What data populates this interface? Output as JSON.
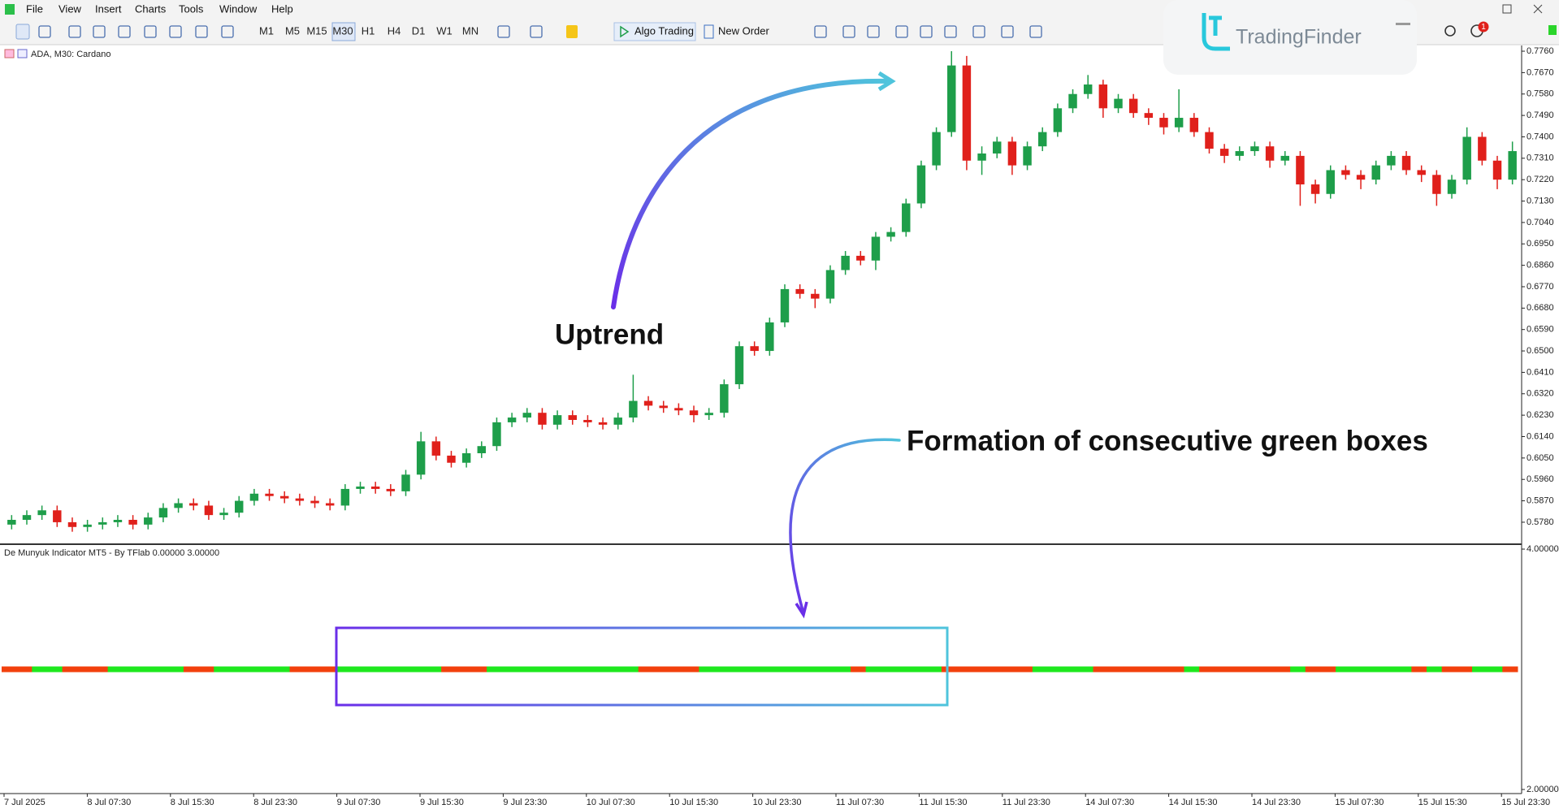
{
  "menu": [
    "File",
    "View",
    "Insert",
    "Charts",
    "Tools",
    "Window",
    "Help"
  ],
  "toolbar": {
    "timeframes": [
      "M1",
      "M5",
      "M15",
      "M30",
      "H1",
      "H4",
      "D1",
      "W1",
      "MN"
    ],
    "active_timeframe": "M30",
    "algo_trading": "Algo Trading",
    "new_order": "New Order"
  },
  "logo": "TradingFinder",
  "notification_count": 1,
  "chart_data": {
    "type": "candlestick",
    "symbol_label": "ADA, M30: Cardano",
    "up_color": "#1e9e4a",
    "down_color": "#e0201b",
    "ylim": [
      0.5691,
      0.7784
    ],
    "yticks": [
      {
        "value": 0.776,
        "label": "0.7760"
      },
      {
        "value": 0.767,
        "label": "0.7670"
      },
      {
        "value": 0.758,
        "label": "0.7580"
      },
      {
        "value": 0.749,
        "label": "0.7490"
      },
      {
        "value": 0.74,
        "label": "0.7400"
      },
      {
        "value": 0.731,
        "label": "0.7310"
      },
      {
        "value": 0.722,
        "label": "0.7220"
      },
      {
        "value": 0.713,
        "label": "0.7130"
      },
      {
        "value": 0.704,
        "label": "0.7040"
      },
      {
        "value": 0.695,
        "label": "0.6950"
      },
      {
        "value": 0.686,
        "label": "0.6860"
      },
      {
        "value": 0.677,
        "label": "0.6770"
      },
      {
        "value": 0.668,
        "label": "0.6680"
      },
      {
        "value": 0.659,
        "label": "0.6590"
      },
      {
        "value": 0.65,
        "label": "0.6500"
      },
      {
        "value": 0.641,
        "label": "0.6410"
      },
      {
        "value": 0.632,
        "label": "0.6320"
      },
      {
        "value": 0.623,
        "label": "0.6230"
      },
      {
        "value": 0.614,
        "label": "0.6140"
      },
      {
        "value": 0.605,
        "label": "0.6050"
      },
      {
        "value": 0.596,
        "label": "0.5960"
      },
      {
        "value": 0.587,
        "label": "0.5870"
      },
      {
        "value": 0.578,
        "label": "0.5780"
      }
    ],
    "x_labels": [
      "7 Jul 2025",
      "8 Jul 07:30",
      "8 Jul 15:30",
      "8 Jul 23:30",
      "9 Jul 07:30",
      "9 Jul 15:30",
      "9 Jul 23:30",
      "10 Jul 07:30",
      "10 Jul 15:30",
      "10 Jul 23:30",
      "11 Jul 07:30",
      "11 Jul 15:30",
      "11 Jul 23:30",
      "14 Jul 07:30",
      "14 Jul 15:30",
      "14 Jul 23:30",
      "15 Jul 07:30",
      "15 Jul 15:30",
      "15 Jul 23:30"
    ],
    "candles": [
      [
        0.577,
        0.581,
        0.575,
        0.579
      ],
      [
        0.579,
        0.583,
        0.577,
        0.581
      ],
      [
        0.581,
        0.585,
        0.579,
        0.583
      ],
      [
        0.583,
        0.585,
        0.576,
        0.578
      ],
      [
        0.578,
        0.58,
        0.574,
        0.576
      ],
      [
        0.576,
        0.579,
        0.574,
        0.577
      ],
      [
        0.577,
        0.58,
        0.575,
        0.578
      ],
      [
        0.578,
        0.581,
        0.576,
        0.579
      ],
      [
        0.579,
        0.581,
        0.575,
        0.577
      ],
      [
        0.577,
        0.582,
        0.575,
        0.58
      ],
      [
        0.58,
        0.586,
        0.578,
        0.584
      ],
      [
        0.584,
        0.588,
        0.582,
        0.586
      ],
      [
        0.586,
        0.588,
        0.583,
        0.585
      ],
      [
        0.585,
        0.587,
        0.579,
        0.581
      ],
      [
        0.581,
        0.584,
        0.579,
        0.582
      ],
      [
        0.582,
        0.589,
        0.58,
        0.587
      ],
      [
        0.587,
        0.592,
        0.585,
        0.59
      ],
      [
        0.59,
        0.592,
        0.587,
        0.589
      ],
      [
        0.589,
        0.591,
        0.586,
        0.588
      ],
      [
        0.588,
        0.59,
        0.585,
        0.587
      ],
      [
        0.587,
        0.589,
        0.584,
        0.586
      ],
      [
        0.586,
        0.588,
        0.583,
        0.585
      ],
      [
        0.585,
        0.594,
        0.583,
        0.592
      ],
      [
        0.592,
        0.595,
        0.59,
        0.593
      ],
      [
        0.593,
        0.595,
        0.59,
        0.592
      ],
      [
        0.592,
        0.594,
        0.589,
        0.591
      ],
      [
        0.591,
        0.6,
        0.589,
        0.598
      ],
      [
        0.598,
        0.616,
        0.596,
        0.612
      ],
      [
        0.612,
        0.614,
        0.604,
        0.606
      ],
      [
        0.606,
        0.608,
        0.601,
        0.603
      ],
      [
        0.603,
        0.609,
        0.601,
        0.607
      ],
      [
        0.607,
        0.612,
        0.605,
        0.61
      ],
      [
        0.61,
        0.622,
        0.608,
        0.62
      ],
      [
        0.62,
        0.624,
        0.618,
        0.622
      ],
      [
        0.622,
        0.626,
        0.62,
        0.624
      ],
      [
        0.624,
        0.626,
        0.617,
        0.619
      ],
      [
        0.619,
        0.625,
        0.617,
        0.623
      ],
      [
        0.623,
        0.625,
        0.619,
        0.621
      ],
      [
        0.621,
        0.623,
        0.618,
        0.62
      ],
      [
        0.62,
        0.622,
        0.617,
        0.619
      ],
      [
        0.619,
        0.624,
        0.617,
        0.622
      ],
      [
        0.622,
        0.64,
        0.62,
        0.629
      ],
      [
        0.629,
        0.631,
        0.625,
        0.627
      ],
      [
        0.627,
        0.629,
        0.624,
        0.626
      ],
      [
        0.626,
        0.628,
        0.623,
        0.625
      ],
      [
        0.625,
        0.627,
        0.62,
        0.623
      ],
      [
        0.623,
        0.626,
        0.621,
        0.624
      ],
      [
        0.624,
        0.638,
        0.622,
        0.636
      ],
      [
        0.636,
        0.654,
        0.634,
        0.652
      ],
      [
        0.652,
        0.654,
        0.648,
        0.65
      ],
      [
        0.65,
        0.664,
        0.648,
        0.662
      ],
      [
        0.662,
        0.678,
        0.66,
        0.676
      ],
      [
        0.676,
        0.678,
        0.672,
        0.674
      ],
      [
        0.674,
        0.676,
        0.668,
        0.672
      ],
      [
        0.672,
        0.686,
        0.67,
        0.684
      ],
      [
        0.684,
        0.692,
        0.682,
        0.69
      ],
      [
        0.69,
        0.692,
        0.686,
        0.688
      ],
      [
        0.688,
        0.7,
        0.684,
        0.698
      ],
      [
        0.698,
        0.702,
        0.696,
        0.7
      ],
      [
        0.7,
        0.714,
        0.698,
        0.712
      ],
      [
        0.712,
        0.73,
        0.71,
        0.728
      ],
      [
        0.728,
        0.744,
        0.726,
        0.742
      ],
      [
        0.742,
        0.776,
        0.74,
        0.77
      ],
      [
        0.77,
        0.774,
        0.726,
        0.73
      ],
      [
        0.73,
        0.736,
        0.724,
        0.733
      ],
      [
        0.733,
        0.74,
        0.731,
        0.738
      ],
      [
        0.738,
        0.74,
        0.724,
        0.728
      ],
      [
        0.728,
        0.738,
        0.726,
        0.736
      ],
      [
        0.736,
        0.744,
        0.734,
        0.742
      ],
      [
        0.742,
        0.754,
        0.74,
        0.752
      ],
      [
        0.752,
        0.76,
        0.75,
        0.758
      ],
      [
        0.758,
        0.766,
        0.756,
        0.762
      ],
      [
        0.762,
        0.764,
        0.748,
        0.752
      ],
      [
        0.752,
        0.758,
        0.75,
        0.756
      ],
      [
        0.756,
        0.758,
        0.748,
        0.75
      ],
      [
        0.75,
        0.752,
        0.745,
        0.748
      ],
      [
        0.748,
        0.75,
        0.741,
        0.744
      ],
      [
        0.744,
        0.76,
        0.742,
        0.748
      ],
      [
        0.748,
        0.75,
        0.74,
        0.742
      ],
      [
        0.742,
        0.744,
        0.733,
        0.735
      ],
      [
        0.735,
        0.737,
        0.729,
        0.732
      ],
      [
        0.732,
        0.736,
        0.73,
        0.734
      ],
      [
        0.734,
        0.738,
        0.732,
        0.736
      ],
      [
        0.736,
        0.738,
        0.727,
        0.73
      ],
      [
        0.73,
        0.734,
        0.728,
        0.732
      ],
      [
        0.732,
        0.734,
        0.711,
        0.72
      ],
      [
        0.72,
        0.722,
        0.712,
        0.716
      ],
      [
        0.716,
        0.728,
        0.714,
        0.726
      ],
      [
        0.726,
        0.728,
        0.722,
        0.724
      ],
      [
        0.724,
        0.726,
        0.718,
        0.722
      ],
      [
        0.722,
        0.73,
        0.72,
        0.728
      ],
      [
        0.728,
        0.734,
        0.726,
        0.732
      ],
      [
        0.732,
        0.734,
        0.724,
        0.726
      ],
      [
        0.726,
        0.728,
        0.721,
        0.724
      ],
      [
        0.724,
        0.726,
        0.711,
        0.716
      ],
      [
        0.716,
        0.724,
        0.714,
        0.722
      ],
      [
        0.722,
        0.744,
        0.72,
        0.74
      ],
      [
        0.74,
        0.742,
        0.728,
        0.73
      ],
      [
        0.73,
        0.732,
        0.718,
        0.722
      ],
      [
        0.722,
        0.738,
        0.72,
        0.734
      ]
    ],
    "indicator": {
      "label": "De Munyuk Indicator MT5 - By TFlab 0.00000 3.00000",
      "ylim": [
        1.966,
        4.034
      ],
      "yticks": [
        {
          "value": 4,
          "label": "4.00000"
        },
        {
          "value": 2,
          "label": "2.00000"
        }
      ],
      "level": 3,
      "bar_colors": [
        "#f2400d",
        "#f2400d",
        "#1ee81e",
        "#1ee81e",
        "#f2400d",
        "#f2400d",
        "#f2400d",
        "#1ee81e",
        "#1ee81e",
        "#1ee81e",
        "#1ee81e",
        "#1ee81e",
        "#f2400d",
        "#f2400d",
        "#1ee81e",
        "#1ee81e",
        "#1ee81e",
        "#1ee81e",
        "#1ee81e",
        "#f2400d",
        "#f2400d",
        "#f2400d",
        "#1ee81e",
        "#1ee81e",
        "#1ee81e",
        "#1ee81e",
        "#1ee81e",
        "#1ee81e",
        "#1ee81e",
        "#f2400d",
        "#f2400d",
        "#f2400d",
        "#1ee81e",
        "#1ee81e",
        "#1ee81e",
        "#1ee81e",
        "#1ee81e",
        "#1ee81e",
        "#1ee81e",
        "#1ee81e",
        "#1ee81e",
        "#1ee81e",
        "#f2400d",
        "#f2400d",
        "#f2400d",
        "#f2400d",
        "#1ee81e",
        "#1ee81e",
        "#1ee81e",
        "#1ee81e",
        "#1ee81e",
        "#1ee81e",
        "#1ee81e",
        "#1ee81e",
        "#1ee81e",
        "#1ee81e",
        "#f2400d",
        "#1ee81e",
        "#1ee81e",
        "#1ee81e",
        "#1ee81e",
        "#1ee81e",
        "#f2400d",
        "#f2400d",
        "#f2400d",
        "#f2400d",
        "#f2400d",
        "#f2400d",
        "#1ee81e",
        "#1ee81e",
        "#1ee81e",
        "#1ee81e",
        "#f2400d",
        "#f2400d",
        "#f2400d",
        "#f2400d",
        "#f2400d",
        "#f2400d",
        "#1ee81e",
        "#f2400d",
        "#f2400d",
        "#f2400d",
        "#f2400d",
        "#f2400d",
        "#f2400d",
        "#1ee81e",
        "#f2400d",
        "#f2400d",
        "#1ee81e",
        "#1ee81e",
        "#1ee81e",
        "#1ee81e",
        "#1ee81e",
        "#f2400d",
        "#1ee81e",
        "#f2400d",
        "#f2400d",
        "#1ee81e",
        "#1ee81e",
        "#f2400d"
      ]
    },
    "annotations": [
      "Uptrend",
      "Formation of consecutive green boxes"
    ]
  }
}
